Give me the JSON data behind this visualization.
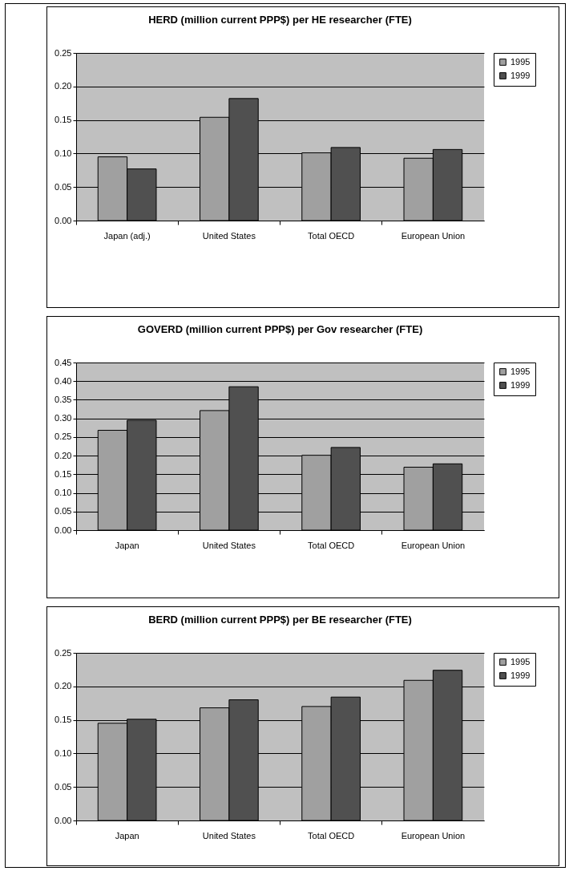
{
  "chart_data": [
    {
      "type": "bar",
      "title": "HERD (million current PPP$) per HE researcher (FTE)",
      "categories": [
        "Japan (adj.)",
        "United States",
        "Total OECD",
        "European Union"
      ],
      "series": [
        {
          "name": "1995",
          "color": "#a0a0a0",
          "values": [
            0.095,
            0.154,
            0.101,
            0.093
          ]
        },
        {
          "name": "1999",
          "color": "#505050",
          "values": [
            0.077,
            0.182,
            0.109,
            0.106
          ]
        }
      ],
      "ylim": [
        0,
        0.25
      ],
      "yticks": [
        {
          "value": 0,
          "label": "0.00"
        },
        {
          "value": 0.05,
          "label": "0.05"
        },
        {
          "value": 0.1,
          "label": "0.10"
        },
        {
          "value": 0.15,
          "label": "0.15"
        },
        {
          "value": 0.2,
          "label": "0.20"
        },
        {
          "value": 0.25,
          "label": "0.25"
        }
      ],
      "grid": "y",
      "legend": "right"
    },
    {
      "type": "bar",
      "title": "GOVERD (million current PPP$) per Gov researcher (FTE)",
      "categories": [
        "Japan",
        "United States",
        "Total OECD",
        "European Union"
      ],
      "series": [
        {
          "name": "1995",
          "color": "#a0a0a0",
          "values": [
            0.268,
            0.321,
            0.201,
            0.169
          ]
        },
        {
          "name": "1999",
          "color": "#505050",
          "values": [
            0.295,
            0.385,
            0.222,
            0.178
          ]
        }
      ],
      "ylim": [
        0,
        0.45
      ],
      "yticks": [
        {
          "value": 0,
          "label": "0.00"
        },
        {
          "value": 0.05,
          "label": "0.05"
        },
        {
          "value": 0.1,
          "label": "0.10"
        },
        {
          "value": 0.15,
          "label": "0.15"
        },
        {
          "value": 0.2,
          "label": "0.20"
        },
        {
          "value": 0.25,
          "label": "0.25"
        },
        {
          "value": 0.3,
          "label": "0.30"
        },
        {
          "value": 0.35,
          "label": "0.35"
        },
        {
          "value": 0.4,
          "label": "0.40"
        },
        {
          "value": 0.45,
          "label": "0.45"
        }
      ],
      "grid": "y",
      "legend": "right"
    },
    {
      "type": "bar",
      "title": "BERD (million current PPP$) per BE researcher (FTE)",
      "categories": [
        "Japan",
        "United States",
        "Total OECD",
        "European Union"
      ],
      "series": [
        {
          "name": "1995",
          "color": "#a0a0a0",
          "values": [
            0.145,
            0.168,
            0.17,
            0.209
          ]
        },
        {
          "name": "1999",
          "color": "#505050",
          "values": [
            0.151,
            0.18,
            0.184,
            0.224
          ]
        }
      ],
      "ylim": [
        0,
        0.25
      ],
      "yticks": [
        {
          "value": 0,
          "label": "0.00"
        },
        {
          "value": 0.05,
          "label": "0.05"
        },
        {
          "value": 0.1,
          "label": "0.10"
        },
        {
          "value": 0.15,
          "label": "0.15"
        },
        {
          "value": 0.2,
          "label": "0.20"
        },
        {
          "value": 0.25,
          "label": "0.25"
        }
      ],
      "grid": "y",
      "legend": "right"
    }
  ]
}
